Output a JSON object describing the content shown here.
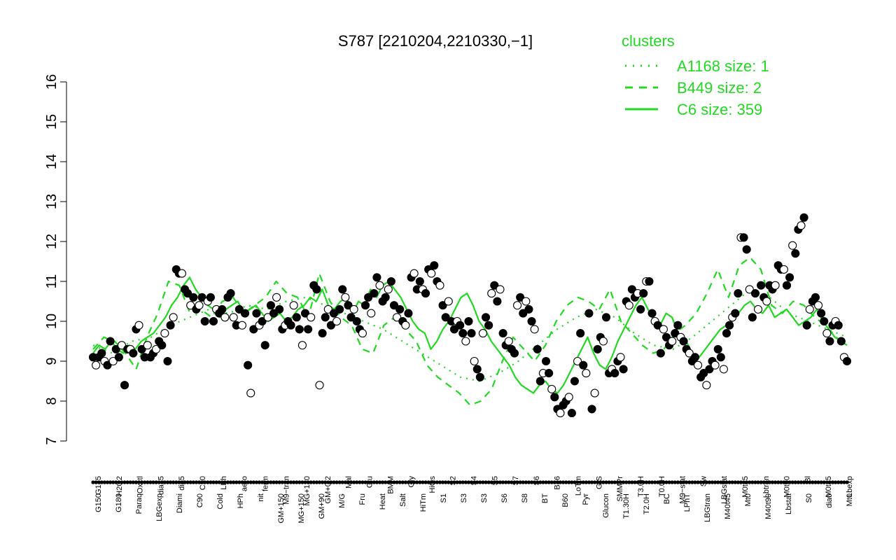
{
  "chart_data": {
    "type": "line",
    "title": "S787 [2210204,2210330,−1]",
    "ylim": [
      7,
      16
    ],
    "yticks": [
      7,
      8,
      9,
      10,
      11,
      12,
      13,
      14,
      15,
      16
    ],
    "grid": false,
    "legend_position": "top-right",
    "legend": {
      "title": "clusters",
      "entries": [
        {
          "label": "A1168 size: 1",
          "style": "dotted"
        },
        {
          "label": "B449 size: 2",
          "style": "dashed"
        },
        {
          "label": "C6 size: 359",
          "style": "solid"
        }
      ]
    },
    "colors": {
      "lines": "#21d921",
      "points": "#000000",
      "text": "#000000"
    },
    "x_tick_labels_upper": [
      "G135",
      "H2O2",
      "Oxctl",
      "dia15",
      "dia5",
      "C30",
      "LPh",
      "aero",
      "ferm",
      "M9−tran",
      "MG+120",
      "GM+0.2",
      "Mal",
      "Glu",
      "BMM",
      "Gly",
      "HiOs",
      "S2",
      "S4",
      "S5",
      "S7",
      "S6",
      "B36",
      "LoTm",
      "G/S",
      "SMMPr",
      "T3.0H",
      "T0.0H",
      "M9−stat",
      "Sw",
      "LBGstat",
      "M0t45",
      "Lbtran",
      "M0t90",
      "Bl",
      "M0t45",
      "Lbexp"
    ],
    "x_tick_labels_lower": [
      "G150",
      "G180",
      "Paraq",
      "LBGexp",
      "Diami",
      "C90",
      "Cold",
      "HPh",
      "nit",
      "GM+150",
      "MG+150",
      "GM+90",
      "M/G",
      "Fru",
      "Heat",
      "Salt",
      "HiTm",
      "S1",
      "S3",
      "S3",
      "S6",
      "S8",
      "BT",
      "B60",
      "Pyr",
      "Glucon",
      "T1.30H",
      "T2.0H",
      "BC",
      "LPhT",
      "LBGtran",
      "M40t45",
      "Mt0",
      "M40t90",
      "Lbstat",
      "S0",
      "dia0",
      "Mt0"
    ],
    "series": [
      {
        "name": "C6 size: 359",
        "values": [
          9.2,
          9.4,
          9.3,
          9.5,
          9.3,
          9.2,
          9.4,
          9.3,
          9.5,
          9.6,
          9.7,
          9.9,
          10.1,
          10.4,
          10.6,
          10.9,
          11.1,
          10.8,
          10.6,
          10.4,
          10.3,
          10.1,
          10.3,
          10.4,
          10.5,
          10.2,
          10.3,
          10.4,
          10.2,
          10.0,
          10.1,
          10.2,
          10.0,
          10.1,
          10.3,
          10.4,
          10.6,
          10.5,
          10.8,
          10.4,
          10.3,
          10.5,
          10.6,
          10.2,
          10.5,
          10.4,
          10.8,
          10.6,
          10.9,
          11.0,
          10.8,
          10.6,
          10.3,
          10.0,
          9.8,
          9.7,
          9.3,
          9.5,
          9.8,
          10.0,
          10.3,
          10.6,
          10.7,
          10.4,
          10.0,
          9.8,
          9.5,
          9.3,
          9.1,
          8.9,
          8.6,
          8.4,
          8.3,
          8.2,
          8.4,
          8.5,
          8.3,
          8.2,
          8.4,
          8.7,
          9.0,
          9.3,
          9.6,
          9.2,
          8.9,
          8.8,
          9.1,
          9.5,
          9.8,
          10.1,
          10.4,
          10.6,
          10.3,
          10.0,
          9.9,
          10.2,
          10.1,
          9.7,
          9.6,
          9.3,
          9.0,
          9.2,
          9.4,
          9.6,
          9.8,
          9.9,
          10.0,
          10.2,
          10.4,
          10.5,
          10.3,
          10.2,
          10.4,
          10.1,
          10.2,
          10.3,
          10.1,
          9.9,
          10.0,
          10.1,
          10.3,
          10.0,
          9.8,
          9.6,
          9.5,
          9.4
        ]
      },
      {
        "name": "B449 size: 2",
        "values": [
          9.3,
          9.6,
          9.5,
          9.2,
          8.8,
          9.6,
          10.2,
          11.0,
          10.9,
          10.2,
          10.3,
          10.1,
          10.5,
          10.6,
          10.2,
          10.4,
          10.6,
          11.0,
          10.7,
          10.6,
          10.1,
          11.2,
          10.5,
          10.1,
          9.9,
          9.3,
          9.2,
          9.9,
          10.1,
          9.8,
          9.5,
          8.9,
          8.6,
          8.4,
          8.2,
          7.9,
          8.0,
          8.3,
          9.0,
          9.6,
          9.3,
          9.0,
          9.4,
          10.0,
          10.4,
          10.6,
          10.5,
          10.3,
          10.8,
          10.0,
          9.7,
          9.4,
          9.2,
          9.3,
          9.7,
          9.9,
          10.2,
          10.7,
          11.3,
          10.6,
          11.4,
          11.6,
          11.3,
          10.4,
          10.2,
          10.5,
          10.4,
          10.1,
          9.9,
          9.6,
          9.4
        ]
      },
      {
        "name": "A1168 size: 1",
        "values": [
          9.4,
          9.2,
          9.5,
          9.6,
          9.9,
          10.1,
          10.3,
          10.2,
          10.4,
          10.3,
          10.5,
          10.6,
          10.4,
          10.2,
          10.0,
          9.8,
          9.5,
          9.2,
          8.9,
          8.6,
          8.5,
          8.7,
          9.0,
          9.4,
          9.8,
          10.1,
          10.3,
          10.1,
          9.7,
          9.4,
          9.3,
          9.6,
          10.0,
          10.4,
          10.8,
          10.6,
          10.2,
          10.0,
          9.8,
          9.6
        ]
      }
    ],
    "points": [
      9.1,
      8.9,
      9.1,
      9.2,
      9.0,
      8.9,
      9.5,
      9.0,
      9.3,
      9.1,
      9.4,
      8.4,
      9.3,
      9.3,
      9.2,
      9.8,
      9.9,
      9.3,
      9.1,
      9.4,
      9.1,
      9.2,
      9.3,
      9.5,
      9.4,
      9.7,
      9.0,
      9.9,
      10.1,
      11.3,
      11.2,
      11.2,
      10.8,
      10.7,
      10.4,
      10.6,
      10.3,
      10.4,
      10.6,
      10.0,
      10.5,
      10.6,
      10.0,
      10.3,
      10.2,
      10.3,
      10.1,
      10.6,
      10.7,
      10.1,
      9.9,
      10.3,
      9.9,
      10.2,
      8.9,
      8.2,
      9.8,
      10.2,
      9.9,
      10.0,
      9.4,
      10.1,
      10.4,
      10.2,
      10.6,
      10.3,
      9.8,
      9.9,
      10.0,
      9.9,
      10.4,
      10.1,
      9.8,
      9.4,
      10.2,
      9.8,
      10.1,
      10.9,
      10.8,
      8.4,
      9.7,
      10.1,
      10.3,
      9.9,
      10.2,
      10.0,
      10.3,
      10.8,
      10.6,
      10.4,
      10.1,
      10.3,
      10.0,
      9.8,
      9.7,
      10.4,
      10.6,
      10.2,
      10.7,
      11.1,
      10.9,
      10.5,
      10.6,
      10.8,
      11.0,
      10.4,
      10.1,
      10.3,
      10.0,
      9.9,
      10.2,
      11.1,
      11.2,
      10.8,
      11.0,
      10.8,
      10.7,
      11.3,
      11.2,
      11.4,
      11.0,
      10.9,
      10.4,
      10.1,
      10.5,
      10.0,
      9.8,
      10.0,
      9.9,
      9.7,
      9.5,
      10.0,
      9.7,
      9.0,
      8.8,
      8.6,
      9.7,
      10.1,
      9.9,
      10.7,
      10.9,
      10.5,
      10.8,
      9.7,
      9.4,
      9.5,
      9.3,
      9.2,
      10.4,
      10.6,
      10.2,
      10.5,
      10.3,
      10.0,
      9.8,
      9.3,
      8.5,
      8.7,
      9.0,
      8.7,
      8.3,
      8.1,
      7.8,
      7.7,
      7.9,
      8.0,
      8.1,
      7.7,
      8.5,
      9.0,
      9.7,
      8.9,
      8.7,
      10.2,
      7.8,
      8.2,
      9.3,
      9.6,
      9.5,
      10.1,
      8.7,
      8.8,
      8.7,
      9.0,
      9.1,
      8.8,
      10.5,
      10.4,
      10.8,
      10.6,
      10.7,
      10.3,
      10.7,
      11.0,
      11.0,
      10.2,
      10.0,
      9.9,
      9.2,
      9.8,
      9.6,
      9.4,
      9.5,
      9.7,
      9.9,
      9.6,
      9.5,
      9.3,
      9.2,
      9.0,
      9.1,
      8.9,
      8.6,
      8.7,
      8.4,
      8.8,
      9.0,
      8.9,
      9.3,
      9.1,
      8.8,
      9.7,
      9.9,
      10.1,
      10.2,
      10.7,
      12.1,
      12.1,
      11.8,
      10.8,
      10.1,
      10.7,
      10.3,
      10.9,
      10.6,
      10.5,
      10.9,
      10.8,
      10.9,
      11.4,
      11.3,
      11.3,
      10.9,
      11.1,
      11.9,
      11.7,
      12.3,
      12.4,
      12.6,
      9.9,
      10.3,
      10.5,
      10.6,
      10.4,
      10.2,
      10.0,
      9.7,
      9.5,
      9.9,
      10.0,
      9.9,
      9.5,
      9.1,
      9.0
    ]
  }
}
